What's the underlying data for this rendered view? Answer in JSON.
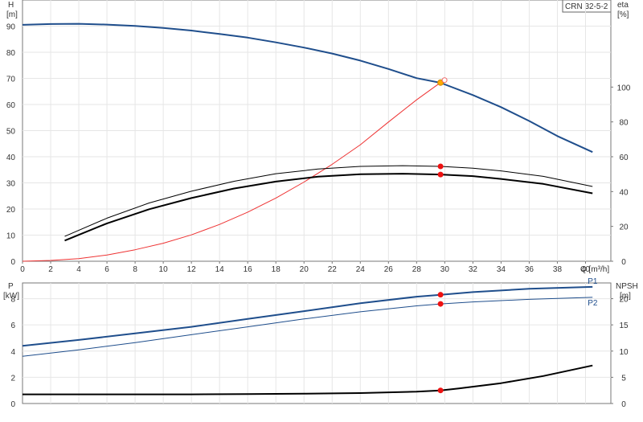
{
  "chart_data": [
    {
      "type": "line",
      "panel": "top",
      "label": "CRN 32-5-2",
      "x_unit_label": "Q [m³/h]",
      "y_left_label": [
        "H",
        "[m]"
      ],
      "y_right_label": [
        "eta",
        "[%]"
      ],
      "xlim": [
        0,
        41.8
      ],
      "x_ticks": [
        0,
        2,
        4,
        6,
        8,
        10,
        12,
        14,
        16,
        18,
        20,
        22,
        24,
        26,
        28,
        30,
        32,
        34,
        36,
        38,
        40
      ],
      "ylim_left": [
        0,
        100
      ],
      "y_left_ticks": [
        0,
        10,
        20,
        30,
        40,
        50,
        60,
        70,
        80,
        90
      ],
      "ylim_right": [
        0,
        150
      ],
      "y_right_ticks": [
        0,
        20,
        40,
        60,
        80,
        100
      ],
      "series": [
        {
          "color": "#1f4e8c",
          "axis": "left",
          "weight": "thick",
          "x": [
            0,
            2,
            4,
            6,
            8,
            10,
            12,
            14,
            16,
            18,
            20,
            22,
            24,
            26,
            28,
            29.7,
            32,
            34,
            36,
            38,
            40.5
          ],
          "y": [
            90.5,
            90.8,
            90.9,
            90.6,
            90.1,
            89.3,
            88.3,
            87.0,
            85.6,
            83.8,
            81.8,
            79.5,
            76.8,
            73.6,
            70.1,
            68.3,
            63.6,
            59.0,
            53.7,
            47.9,
            41.8
          ]
        },
        {
          "color": "#ee3333",
          "axis": "left",
          "weight": "thin",
          "x": [
            0,
            2,
            4,
            6,
            8,
            10,
            12,
            14,
            16,
            18,
            20,
            22,
            24,
            26,
            28,
            29.7
          ],
          "y": [
            0,
            0.3,
            1.0,
            2.4,
            4.4,
            6.9,
            10.1,
            14.1,
            18.8,
            24.2,
            30.3,
            37.1,
            44.6,
            53.3,
            61.8,
            68.4
          ]
        },
        {
          "color": "#000000",
          "axis": "left",
          "weight": "thin",
          "x": [
            3,
            6,
            9,
            12,
            15,
            18,
            21,
            24,
            27,
            29.7,
            32,
            34,
            37,
            40.5
          ],
          "y": [
            9.5,
            16.5,
            22.3,
            26.8,
            30.6,
            33.5,
            35.3,
            36.3,
            36.6,
            36.3,
            35.6,
            34.6,
            32.5,
            28.6
          ]
        },
        {
          "color": "#000000",
          "axis": "left",
          "weight": "thick",
          "x": [
            3,
            6,
            9,
            12,
            15,
            18,
            21,
            24,
            27,
            29.7,
            32,
            34,
            37,
            40.5
          ],
          "y": [
            7.9,
            14.5,
            19.9,
            24.2,
            27.8,
            30.5,
            32.4,
            33.3,
            33.5,
            33.2,
            32.6,
            31.5,
            29.6,
            26.0
          ]
        }
      ],
      "markers": [
        {
          "x": 29.7,
          "y": 68.4,
          "color": "#ffaa00"
        },
        {
          "x": 29.7,
          "y": 36.3,
          "color": "#ee1111"
        },
        {
          "x": 29.7,
          "y": 33.2,
          "color": "#ee1111"
        }
      ]
    },
    {
      "type": "line",
      "panel": "bottom",
      "y_left_label": [
        "P",
        "[kW]"
      ],
      "y_right_label": [
        "NPSH",
        "[m]"
      ],
      "xlim": [
        0,
        41.8
      ],
      "ylim_left": [
        0,
        9.2
      ],
      "y_left_ticks": [
        0,
        2,
        4,
        6,
        8
      ],
      "ylim_right": [
        0,
        23
      ],
      "y_right_ticks": [
        0,
        5,
        10,
        15,
        20
      ],
      "series": [
        {
          "name": "P1",
          "color": "#1f4e8c",
          "axis": "left",
          "weight": "thick",
          "x": [
            0,
            4,
            8,
            12,
            16,
            20,
            24,
            28,
            29.7,
            32,
            36,
            40.5
          ],
          "y": [
            4.4,
            4.85,
            5.35,
            5.85,
            6.45,
            7.05,
            7.65,
            8.15,
            8.3,
            8.5,
            8.75,
            8.9
          ]
        },
        {
          "name": "P2",
          "color": "#1f4e8c",
          "axis": "left",
          "weight": "thin",
          "x": [
            0,
            4,
            8,
            12,
            16,
            20,
            24,
            28,
            29.7,
            32,
            36,
            40.5
          ],
          "y": [
            3.6,
            4.1,
            4.65,
            5.25,
            5.85,
            6.45,
            7.0,
            7.45,
            7.6,
            7.75,
            7.95,
            8.1
          ]
        },
        {
          "color": "#000000",
          "axis": "left",
          "weight": "thick",
          "x": [
            0,
            4,
            8,
            12,
            16,
            20,
            24,
            28,
            29.7,
            31,
            34,
            37,
            40.5
          ],
          "y": [
            0.7,
            0.7,
            0.7,
            0.7,
            0.72,
            0.75,
            0.8,
            0.9,
            1.0,
            1.15,
            1.55,
            2.1,
            2.9
          ]
        }
      ],
      "markers": [
        {
          "x": 29.7,
          "y": 8.3,
          "color": "#ee1111"
        },
        {
          "x": 29.7,
          "y": 7.6,
          "color": "#ee1111"
        },
        {
          "x": 29.7,
          "y": 1.0,
          "color": "#ee1111"
        }
      ]
    }
  ]
}
